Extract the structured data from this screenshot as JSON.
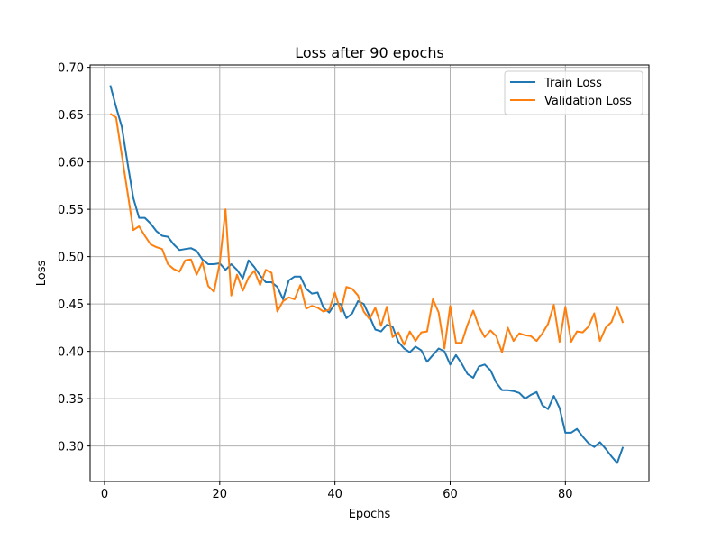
{
  "chart_data": {
    "type": "line",
    "title": "Loss after 90 epochs",
    "xlabel": "Epochs",
    "ylabel": "Loss",
    "xlim": [
      -2.5,
      94.5
    ],
    "ylim": [
      0.2625,
      0.7025
    ],
    "xticks": [
      0,
      20,
      40,
      60,
      80
    ],
    "yticks": [
      0.3,
      0.35,
      0.4,
      0.45,
      0.5,
      0.55,
      0.6,
      0.65,
      0.7
    ],
    "grid": true,
    "legend_position": "top-right",
    "x": [
      1,
      2,
      3,
      4,
      5,
      6,
      7,
      8,
      9,
      10,
      11,
      12,
      13,
      14,
      15,
      16,
      17,
      18,
      19,
      20,
      21,
      22,
      23,
      24,
      25,
      26,
      27,
      28,
      29,
      30,
      31,
      32,
      33,
      34,
      35,
      36,
      37,
      38,
      39,
      40,
      41,
      42,
      43,
      44,
      45,
      46,
      47,
      48,
      49,
      50,
      51,
      52,
      53,
      54,
      55,
      56,
      57,
      58,
      59,
      60,
      61,
      62,
      63,
      64,
      65,
      66,
      67,
      68,
      69,
      70,
      71,
      72,
      73,
      74,
      75,
      76,
      77,
      78,
      79,
      80,
      81,
      82,
      83,
      84,
      85,
      86,
      87,
      88,
      89,
      90
    ],
    "series": [
      {
        "name": "Train Loss",
        "color": "#1f77b4",
        "values": [
          0.681,
          0.658,
          0.637,
          0.599,
          0.562,
          0.541,
          0.541,
          0.535,
          0.527,
          0.522,
          0.521,
          0.513,
          0.507,
          0.508,
          0.509,
          0.506,
          0.497,
          0.492,
          0.492,
          0.493,
          0.486,
          0.492,
          0.486,
          0.477,
          0.496,
          0.489,
          0.48,
          0.473,
          0.473,
          0.468,
          0.455,
          0.475,
          0.479,
          0.479,
          0.466,
          0.461,
          0.462,
          0.446,
          0.441,
          0.45,
          0.45,
          0.435,
          0.44,
          0.453,
          0.45,
          0.437,
          0.423,
          0.421,
          0.428,
          0.426,
          0.41,
          0.403,
          0.399,
          0.405,
          0.401,
          0.389,
          0.396,
          0.403,
          0.4,
          0.386,
          0.396,
          0.387,
          0.376,
          0.372,
          0.384,
          0.386,
          0.38,
          0.367,
          0.359,
          0.359,
          0.358,
          0.356,
          0.35,
          0.354,
          0.357,
          0.343,
          0.339,
          0.353,
          0.34,
          0.314,
          0.314,
          0.318,
          0.31,
          0.303,
          0.299,
          0.304,
          0.297,
          0.289,
          0.282,
          0.299
        ]
      },
      {
        "name": "Validation Loss",
        "color": "#ff7f0e",
        "values": [
          0.651,
          0.647,
          0.607,
          0.568,
          0.528,
          0.532,
          0.522,
          0.513,
          0.51,
          0.508,
          0.492,
          0.487,
          0.484,
          0.496,
          0.497,
          0.481,
          0.494,
          0.469,
          0.463,
          0.493,
          0.55,
          0.459,
          0.481,
          0.464,
          0.478,
          0.485,
          0.47,
          0.486,
          0.483,
          0.442,
          0.453,
          0.457,
          0.455,
          0.47,
          0.445,
          0.448,
          0.446,
          0.442,
          0.444,
          0.462,
          0.442,
          0.468,
          0.466,
          0.459,
          0.442,
          0.434,
          0.446,
          0.427,
          0.447,
          0.415,
          0.42,
          0.407,
          0.421,
          0.411,
          0.42,
          0.421,
          0.455,
          0.441,
          0.403,
          0.448,
          0.409,
          0.409,
          0.428,
          0.443,
          0.426,
          0.415,
          0.422,
          0.416,
          0.399,
          0.425,
          0.411,
          0.419,
          0.417,
          0.416,
          0.411,
          0.419,
          0.429,
          0.449,
          0.41,
          0.447,
          0.41,
          0.421,
          0.42,
          0.426,
          0.44,
          0.411,
          0.425,
          0.431,
          0.447,
          0.43
        ]
      }
    ]
  }
}
